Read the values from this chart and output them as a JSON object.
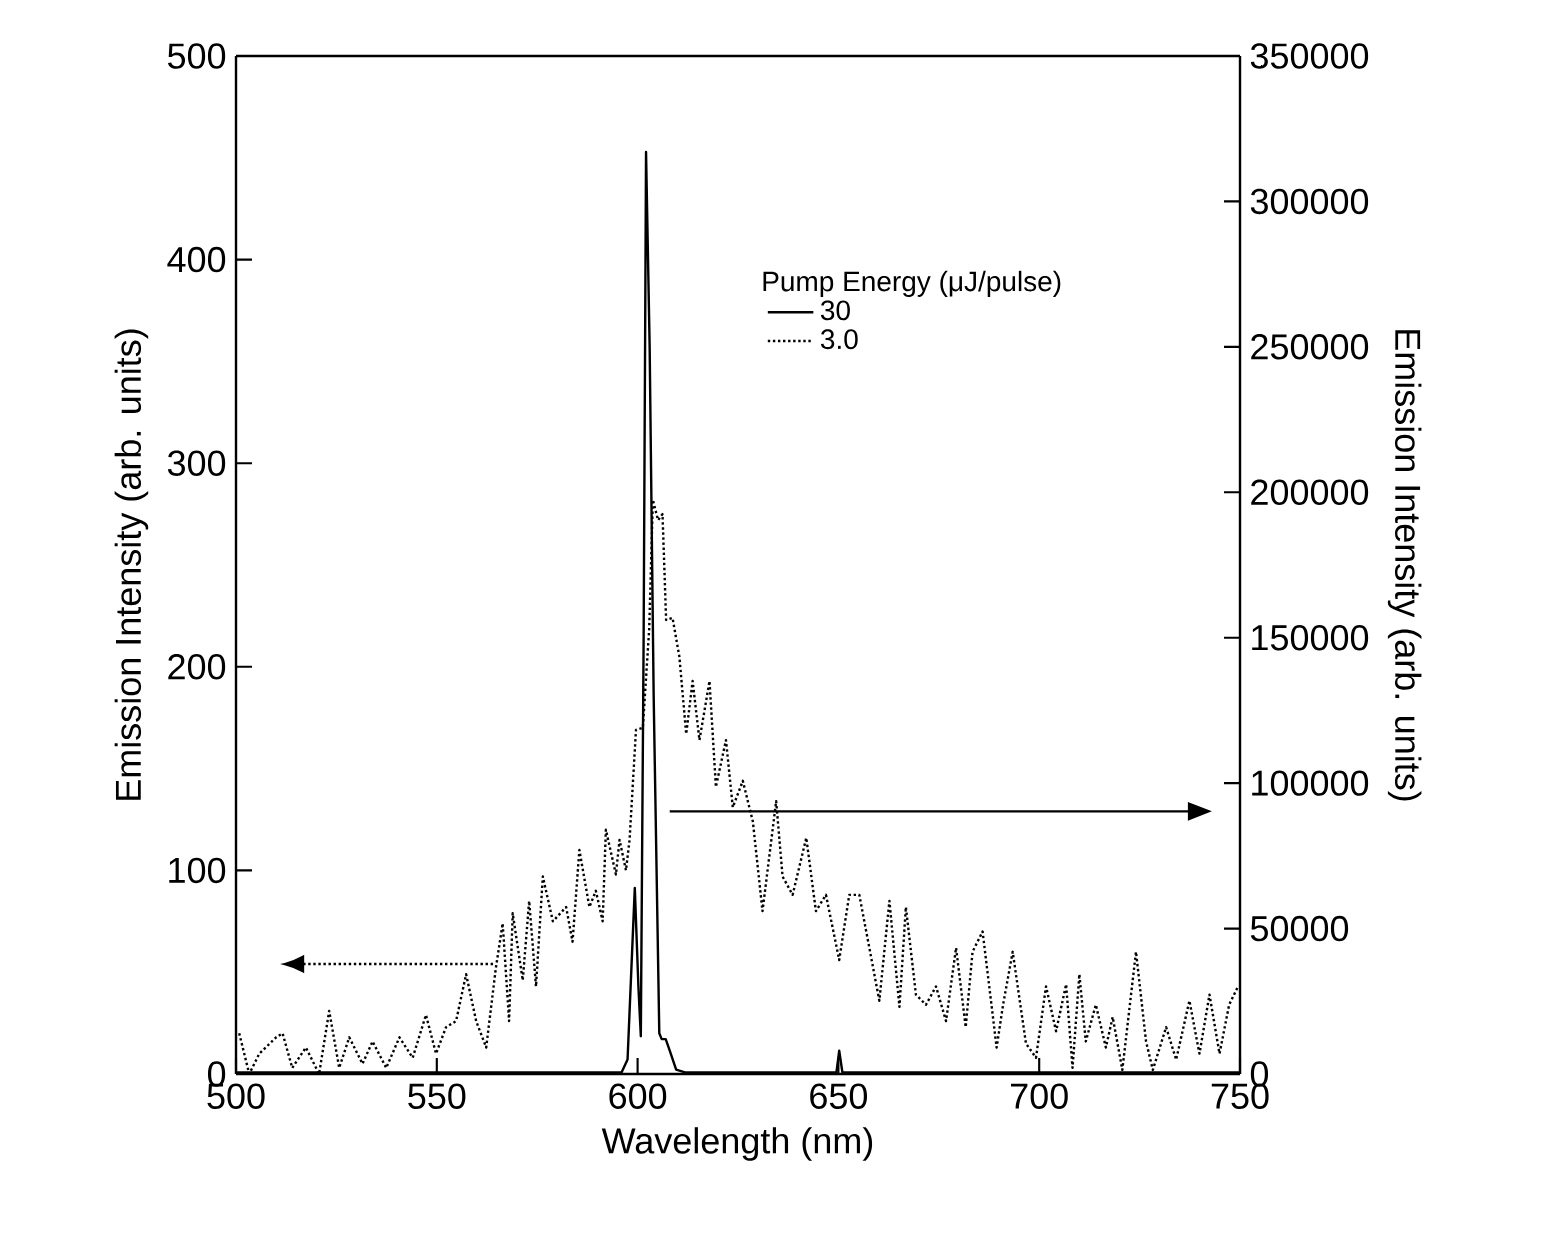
{
  "chart_data": {
    "type": "line",
    "xlabel": "Wavelength (nm)",
    "ylabel": "Emission Intensity (arb. units)",
    "y2label": "Emission Intensity (arb. units)",
    "legend_title": "Pump Energy (μJ/pulse)",
    "legend": "top right",
    "xlim": [
      500,
      750
    ],
    "xticks": [
      500,
      550,
      600,
      650,
      700,
      750
    ],
    "ylim": [
      0,
      500
    ],
    "yticks": [
      0,
      100,
      200,
      300,
      400,
      500
    ],
    "y2lim": [
      0,
      350000
    ],
    "y2ticks": [
      0,
      50000,
      100000,
      150000,
      200000,
      250000,
      300000,
      350000
    ],
    "series": [
      {
        "name": "30",
        "color": "#000000",
        "axis": "y2",
        "line_style": "solid",
        "x": [
          500,
          590,
          596,
          597.5,
          599.3,
          600.2,
          600.8,
          601.5,
          602.1,
          603,
          604,
          605.4,
          606,
          607,
          608,
          609.6,
          612,
          649.5,
          650.2,
          651,
          750
        ],
        "values": [
          500,
          500,
          500,
          5000,
          64000,
          30000,
          13000,
          150000,
          317000,
          250000,
          130000,
          14000,
          12000,
          12000,
          8000,
          1500,
          500,
          500,
          8000,
          500,
          500
        ]
      },
      {
        "name": "3.0",
        "color": "#000000",
        "line_style": "dotted",
        "x": [
          500.8,
          503.3,
          505.8,
          510,
          511.6,
          514,
          517.4,
          520.7,
          523.2,
          525.7,
          528.2,
          531.5,
          534,
          537.4,
          540.7,
          544,
          547.3,
          549.8,
          552.3,
          554.8,
          557.3,
          559.8,
          562.3,
          564.7,
          566.4,
          568,
          568.9,
          571.4,
          573,
          574.7,
          576.4,
          578.9,
          582.2,
          583.8,
          585.5,
          588,
          589.6,
          591.3,
          592.1,
          594.6,
          595.5,
          597.1,
          598,
          599.6,
          601.3,
          602.9,
          603.8,
          605.1,
          606.2,
          607.1,
          608.7,
          610.4,
          612.1,
          613.7,
          615.4,
          617.9,
          619.5,
          622,
          623.7,
          626.2,
          628.7,
          631.1,
          634.5,
          636.1,
          638.6,
          642,
          644.4,
          646.9,
          650.2,
          652.7,
          655.2,
          657.7,
          660.2,
          662.7,
          665.2,
          666.8,
          669.3,
          671.8,
          674.3,
          676.8,
          679.3,
          681.7,
          683.4,
          685.9,
          689.4,
          691,
          693.4,
          696.7,
          699.2,
          701.7,
          704.2,
          706.7,
          708.3,
          710,
          711.6,
          714.1,
          716.6,
          718.3,
          720.7,
          724.1,
          726.6,
          728.3,
          731.6,
          734.1,
          737.4,
          739.9,
          742.4,
          744.9,
          747.3,
          749.5
        ],
        "values": [
          20,
          0,
          10,
          18,
          20,
          3,
          13,
          0,
          31,
          3,
          18,
          5,
          16,
          3,
          18,
          8,
          29,
          10,
          23,
          26,
          49,
          26,
          13,
          52,
          74,
          26,
          79,
          46,
          85,
          43,
          97,
          75,
          82,
          65,
          110,
          82,
          90,
          75,
          120,
          98,
          115,
          100,
          115,
          169,
          170,
          219,
          282,
          272,
          275,
          223,
          224,
          205,
          167,
          193,
          164,
          193,
          141,
          164,
          131,
          144,
          124,
          80,
          134,
          97,
          88,
          116,
          80,
          88,
          56,
          88,
          88,
          62,
          36,
          85,
          33,
          82,
          39,
          34,
          43,
          26,
          62,
          23,
          60,
          70,
          13,
          34,
          60,
          15,
          8,
          43,
          21,
          44,
          3,
          49,
          16,
          34,
          13,
          28,
          2,
          60,
          16,
          2,
          23,
          7,
          36,
          10,
          39,
          10,
          34,
          43
        ]
      }
    ]
  }
}
